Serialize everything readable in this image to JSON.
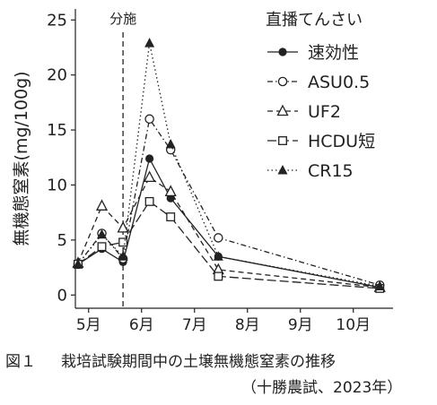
{
  "chart_data": {
    "type": "line",
    "ylabel": "無機態窒素(mg/100g)",
    "ylim": [
      -1.2,
      26
    ],
    "yticks": [
      0,
      5,
      10,
      15,
      20,
      25
    ],
    "xlim": [
      4.75,
      10.75
    ],
    "xticks": [
      {
        "x": 5,
        "label": "5月"
      },
      {
        "x": 6,
        "label": "6月"
      },
      {
        "x": 7,
        "label": "7月"
      },
      {
        "x": 8,
        "label": "8月"
      },
      {
        "x": 9,
        "label": "9月"
      },
      {
        "x": 10,
        "label": "10月"
      }
    ],
    "grid": false,
    "legend": {
      "title": "直播てんさい",
      "position": "top-right"
    },
    "annotation": {
      "x": 5.65,
      "label": "分施"
    },
    "series": [
      {
        "name": "速効性",
        "marker": "filled-circle",
        "dash": "solid",
        "points": [
          [
            4.8,
            2.8
          ],
          [
            5.25,
            4.2
          ],
          [
            5.65,
            3.0
          ],
          [
            6.15,
            12.4
          ],
          [
            6.55,
            8.8
          ],
          [
            7.45,
            3.5
          ],
          [
            10.5,
            0.7
          ]
        ]
      },
      {
        "name": "ASU0.5",
        "marker": "open-circle",
        "dash": "dotdash",
        "points": [
          [
            4.8,
            2.8
          ],
          [
            5.25,
            5.6
          ],
          [
            5.65,
            3.3
          ],
          [
            6.15,
            16.0
          ],
          [
            6.55,
            13.2
          ],
          [
            7.45,
            5.2
          ],
          [
            10.5,
            0.9
          ]
        ]
      },
      {
        "name": "UF2",
        "marker": "open-triangle",
        "dash": "dashed",
        "points": [
          [
            4.8,
            2.9
          ],
          [
            5.25,
            8.1
          ],
          [
            5.65,
            6.1
          ],
          [
            6.15,
            10.7
          ],
          [
            6.55,
            9.4
          ],
          [
            7.45,
            2.3
          ],
          [
            10.5,
            0.7
          ]
        ]
      },
      {
        "name": "HCDU短",
        "marker": "open-square",
        "dash": "longdash",
        "points": [
          [
            4.8,
            2.8
          ],
          [
            5.25,
            4.4
          ],
          [
            5.65,
            4.8
          ],
          [
            6.15,
            8.5
          ],
          [
            6.55,
            7.1
          ],
          [
            7.45,
            1.7
          ],
          [
            10.5,
            0.6
          ]
        ]
      },
      {
        "name": "CR15",
        "marker": "filled-triangle",
        "dash": "dotted",
        "points": [
          [
            4.8,
            2.8
          ],
          [
            5.25,
            5.5
          ],
          [
            5.65,
            3.5
          ],
          [
            6.15,
            22.9
          ],
          [
            6.55,
            13.7
          ],
          [
            7.45,
            3.5
          ],
          [
            10.5,
            0.8
          ]
        ]
      }
    ]
  },
  "caption": {
    "figure_label": "図１",
    "title": "栽培試験期間中の土壌無機態窒素の推移",
    "source": "（十勝農試、2023年）"
  }
}
